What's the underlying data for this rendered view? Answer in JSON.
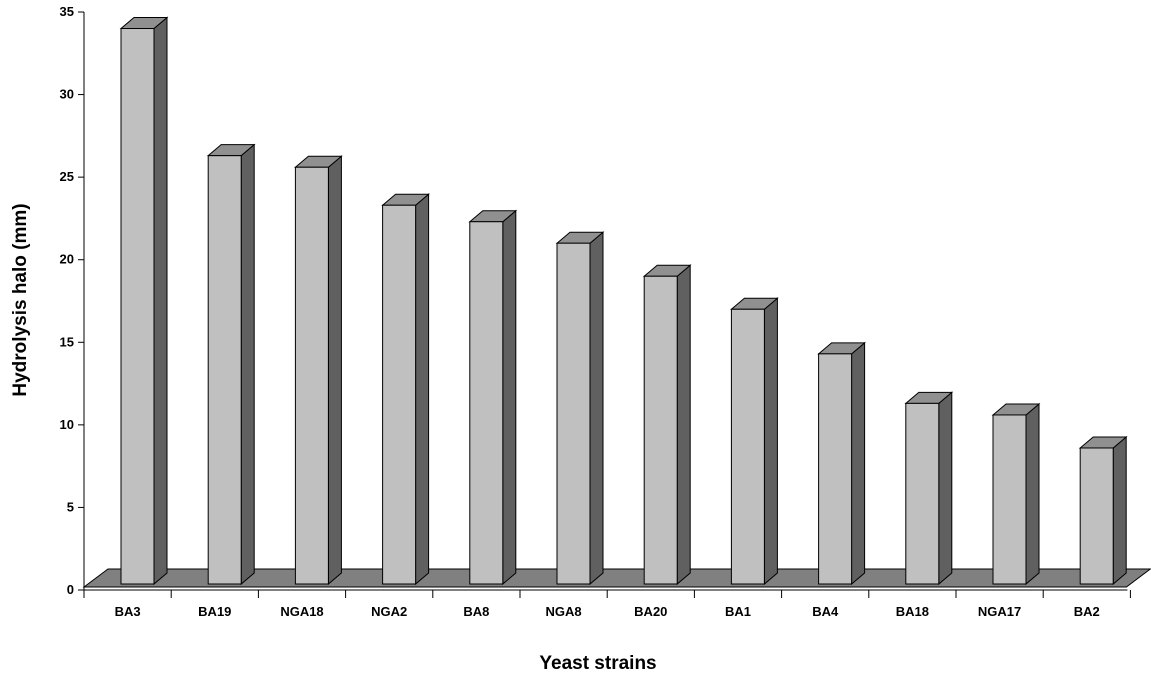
{
  "chart_data": {
    "type": "bar",
    "title": "",
    "xlabel": "Yeast strains",
    "ylabel": "Hydrolysis halo (mm)",
    "categories": [
      "BA3",
      "BA19",
      "NGA18",
      "NGA2",
      "BA8",
      "NGA8",
      "BA20",
      "BA1",
      "BA4",
      "BA18",
      "NGA17",
      "BA2"
    ],
    "values": [
      34,
      26.3,
      25.6,
      23.3,
      22.3,
      21,
      19,
      17,
      14.3,
      11.3,
      10.6,
      8.6
    ],
    "ylim": [
      0,
      35
    ],
    "yticks": [
      0,
      5,
      10,
      15,
      20,
      25,
      30,
      35
    ],
    "grid": false,
    "legend": "none",
    "colors": {
      "bar_front": "#c0c0c0",
      "bar_side": "#606060",
      "bar_top": "#909090",
      "floor": "#808080",
      "outline": "#000000"
    }
  }
}
